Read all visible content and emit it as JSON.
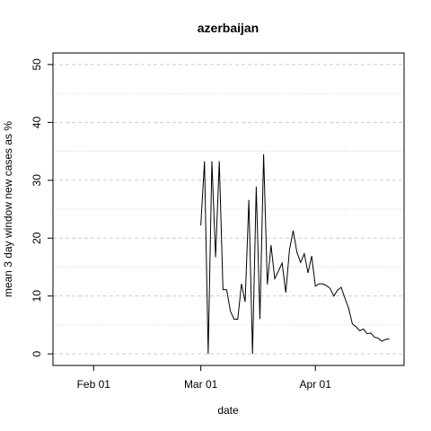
{
  "chart_data": {
    "type": "line",
    "title": "azerbaijan",
    "xlabel": "date",
    "ylabel": "mean  3  day window new cases as %",
    "x_ticks": [
      {
        "label": "Feb 01",
        "date": "2020-02-01"
      },
      {
        "label": "Mar 01",
        "date": "2020-03-01"
      },
      {
        "label": "Apr 01",
        "date": "2020-04-01"
      }
    ],
    "y_ticks": [
      0,
      10,
      20,
      30,
      40,
      50
    ],
    "xlim": [
      "2020-01-21",
      "2020-04-25"
    ],
    "ylim": [
      -2,
      52
    ],
    "grid": "horizontal dashed",
    "series": [
      {
        "x": [
          "2020-03-01",
          "2020-03-02",
          "2020-03-03",
          "2020-03-04",
          "2020-03-05",
          "2020-03-06",
          "2020-03-07",
          "2020-03-08",
          "2020-03-09",
          "2020-03-10",
          "2020-03-11",
          "2020-03-12",
          "2020-03-13",
          "2020-03-14",
          "2020-03-15",
          "2020-03-16",
          "2020-03-17",
          "2020-03-18",
          "2020-03-19",
          "2020-03-20",
          "2020-03-21",
          "2020-03-22",
          "2020-03-23",
          "2020-03-24",
          "2020-03-25",
          "2020-03-26",
          "2020-03-27",
          "2020-03-28",
          "2020-03-29",
          "2020-03-30",
          "2020-03-31",
          "2020-04-01",
          "2020-04-02",
          "2020-04-03",
          "2020-04-04",
          "2020-04-05",
          "2020-04-06",
          "2020-04-07",
          "2020-04-08",
          "2020-04-09",
          "2020-04-10",
          "2020-04-11",
          "2020-04-12",
          "2020-04-13",
          "2020-04-14",
          "2020-04-15",
          "2020-04-16",
          "2020-04-17",
          "2020-04-18",
          "2020-04-19",
          "2020-04-20",
          "2020-04-21"
        ],
        "y": [
          22.2,
          33.3,
          0,
          33.3,
          16.7,
          33.3,
          11.1,
          11.1,
          7.4,
          6.0,
          6.0,
          12.1,
          9.0,
          26.6,
          0,
          28.9,
          6.0,
          34.5,
          12.0,
          18.8,
          13.0,
          14.3,
          15.7,
          10.6,
          18.0,
          21.3,
          17.6,
          15.8,
          17.3,
          14.0,
          16.9,
          11.7,
          12.1,
          12.1,
          11.8,
          11.3,
          10.0,
          11.0,
          11.5,
          9.6,
          7.9,
          5.2,
          4.7,
          4.0,
          4.3,
          3.5,
          3.6,
          2.9,
          2.7,
          2.2,
          2.5,
          2.6
        ]
      }
    ]
  }
}
